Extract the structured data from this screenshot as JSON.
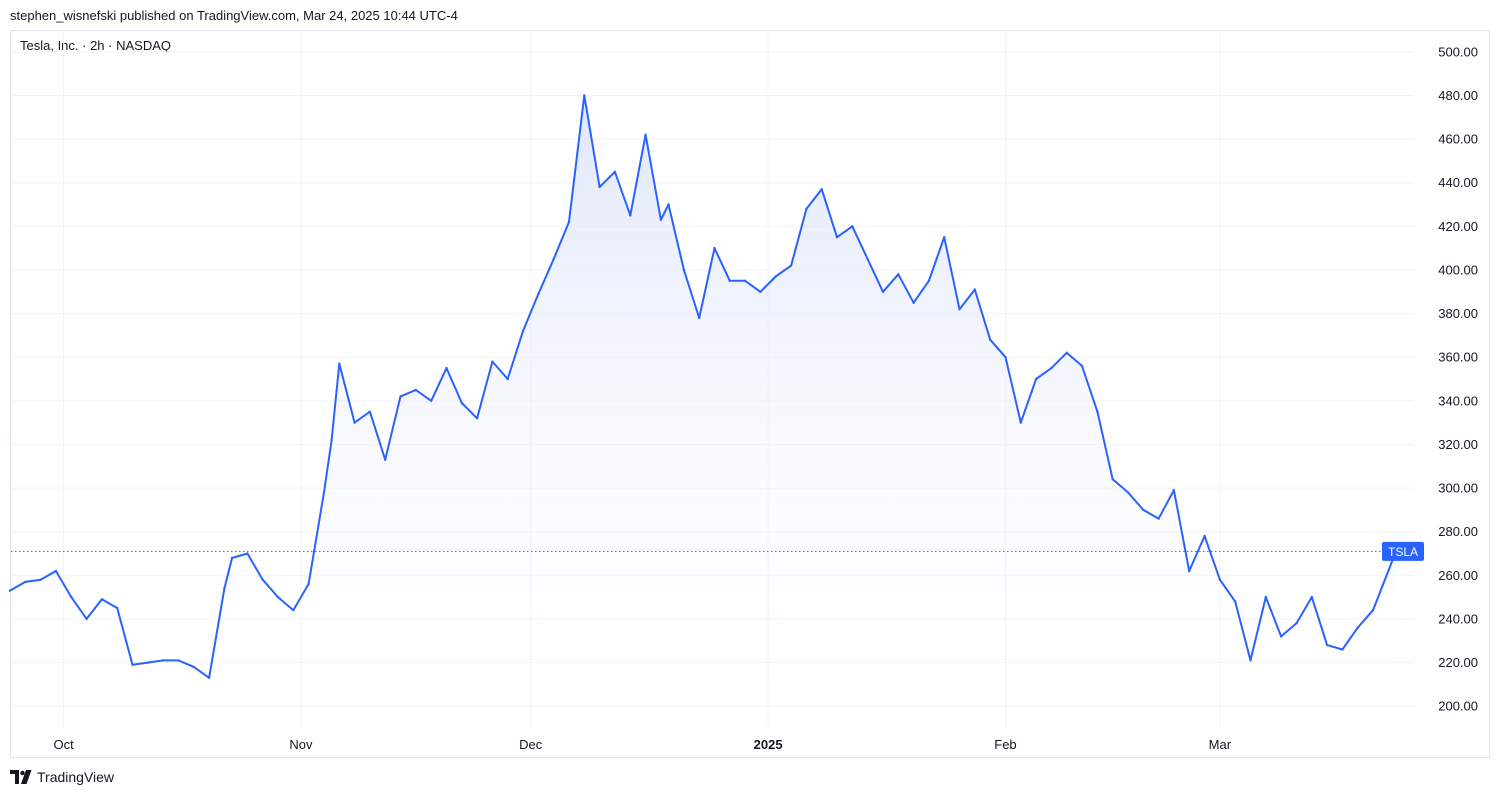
{
  "header": {
    "publish_text": "stephen_wisnefski published on TradingView.com, Mar 24, 2025 10:44 UTC-4",
    "symbol_text": "Tesla, Inc. · 2h · NASDAQ"
  },
  "footer": {
    "brand": "TradingView",
    "logo_icon": "tradingview-logo-icon"
  },
  "colors": {
    "line": "#2962ff",
    "fill_top": "#dbe3fb",
    "grid": "#f0f3fa",
    "label_bg": "#2962ff",
    "axis_text": "#131722"
  },
  "chart_data": {
    "type": "area",
    "title": "Tesla, Inc. · 2h · NASDAQ",
    "ylim": [
      190,
      510
    ],
    "y_ticks": [
      "500.00",
      "480.00",
      "460.00",
      "440.00",
      "420.00",
      "400.00",
      "380.00",
      "360.00",
      "340.00",
      "320.00",
      "300.00",
      "280.00",
      "260.00",
      "240.00",
      "220.00",
      "200.00"
    ],
    "x_ticks": [
      {
        "label": "Oct",
        "date": "2024-10-01",
        "bold": false
      },
      {
        "label": "Nov",
        "date": "2024-11-01",
        "bold": false
      },
      {
        "label": "Dec",
        "date": "2024-12-01",
        "bold": false
      },
      {
        "label": "2025",
        "date": "2025-01-01",
        "bold": true
      },
      {
        "label": "Feb",
        "date": "2025-02-01",
        "bold": false
      },
      {
        "label": "Mar",
        "date": "2025-03-01",
        "bold": false
      }
    ],
    "grid": true,
    "last_value": 271,
    "last_value_label": "TSLA",
    "series": [
      {
        "name": "TSLA",
        "x": [
          "2024-09-24",
          "2024-09-26",
          "2024-09-28",
          "2024-09-30",
          "2024-10-02",
          "2024-10-04",
          "2024-10-06",
          "2024-10-08",
          "2024-10-10",
          "2024-10-12",
          "2024-10-14",
          "2024-10-16",
          "2024-10-18",
          "2024-10-20",
          "2024-10-22",
          "2024-10-23",
          "2024-10-25",
          "2024-10-27",
          "2024-10-29",
          "2024-10-31",
          "2024-11-02",
          "2024-11-04",
          "2024-11-05",
          "2024-11-06",
          "2024-11-08",
          "2024-11-10",
          "2024-11-12",
          "2024-11-14",
          "2024-11-16",
          "2024-11-18",
          "2024-11-20",
          "2024-11-22",
          "2024-11-24",
          "2024-11-26",
          "2024-11-28",
          "2024-11-30",
          "2024-12-02",
          "2024-12-04",
          "2024-12-06",
          "2024-12-08",
          "2024-12-10",
          "2024-12-12",
          "2024-12-14",
          "2024-12-16",
          "2024-12-18",
          "2024-12-19",
          "2024-12-21",
          "2024-12-23",
          "2024-12-25",
          "2024-12-27",
          "2024-12-29",
          "2024-12-31",
          "2025-01-02",
          "2025-01-04",
          "2025-01-06",
          "2025-01-08",
          "2025-01-10",
          "2025-01-12",
          "2025-01-14",
          "2025-01-16",
          "2025-01-18",
          "2025-01-20",
          "2025-01-22",
          "2025-01-24",
          "2025-01-26",
          "2025-01-28",
          "2025-01-30",
          "2025-02-01",
          "2025-02-03",
          "2025-02-05",
          "2025-02-07",
          "2025-02-09",
          "2025-02-11",
          "2025-02-13",
          "2025-02-15",
          "2025-02-17",
          "2025-02-19",
          "2025-02-21",
          "2025-02-23",
          "2025-02-25",
          "2025-02-27",
          "2025-03-01",
          "2025-03-03",
          "2025-03-05",
          "2025-03-07",
          "2025-03-09",
          "2025-03-11",
          "2025-03-13",
          "2025-03-15",
          "2025-03-17",
          "2025-03-19",
          "2025-03-21",
          "2025-03-24"
        ],
        "values": [
          253,
          257,
          258,
          262,
          250,
          240,
          249,
          245,
          219,
          220,
          221,
          221,
          218,
          213,
          254,
          268,
          270,
          258,
          250,
          244,
          256,
          298,
          322,
          357,
          330,
          335,
          313,
          342,
          345,
          340,
          355,
          339,
          332,
          358,
          350,
          372,
          389,
          405,
          422,
          480,
          438,
          445,
          425,
          462,
          423,
          430,
          400,
          378,
          410,
          395,
          395,
          390,
          397,
          402,
          428,
          437,
          415,
          420,
          405,
          390,
          398,
          385,
          395,
          415,
          382,
          391,
          368,
          360,
          330,
          350,
          355,
          362,
          356,
          335,
          304,
          298,
          290,
          286,
          299,
          262,
          278,
          258,
          248,
          221,
          250,
          232,
          238,
          250,
          228,
          226,
          236,
          244,
          271
        ]
      }
    ]
  }
}
